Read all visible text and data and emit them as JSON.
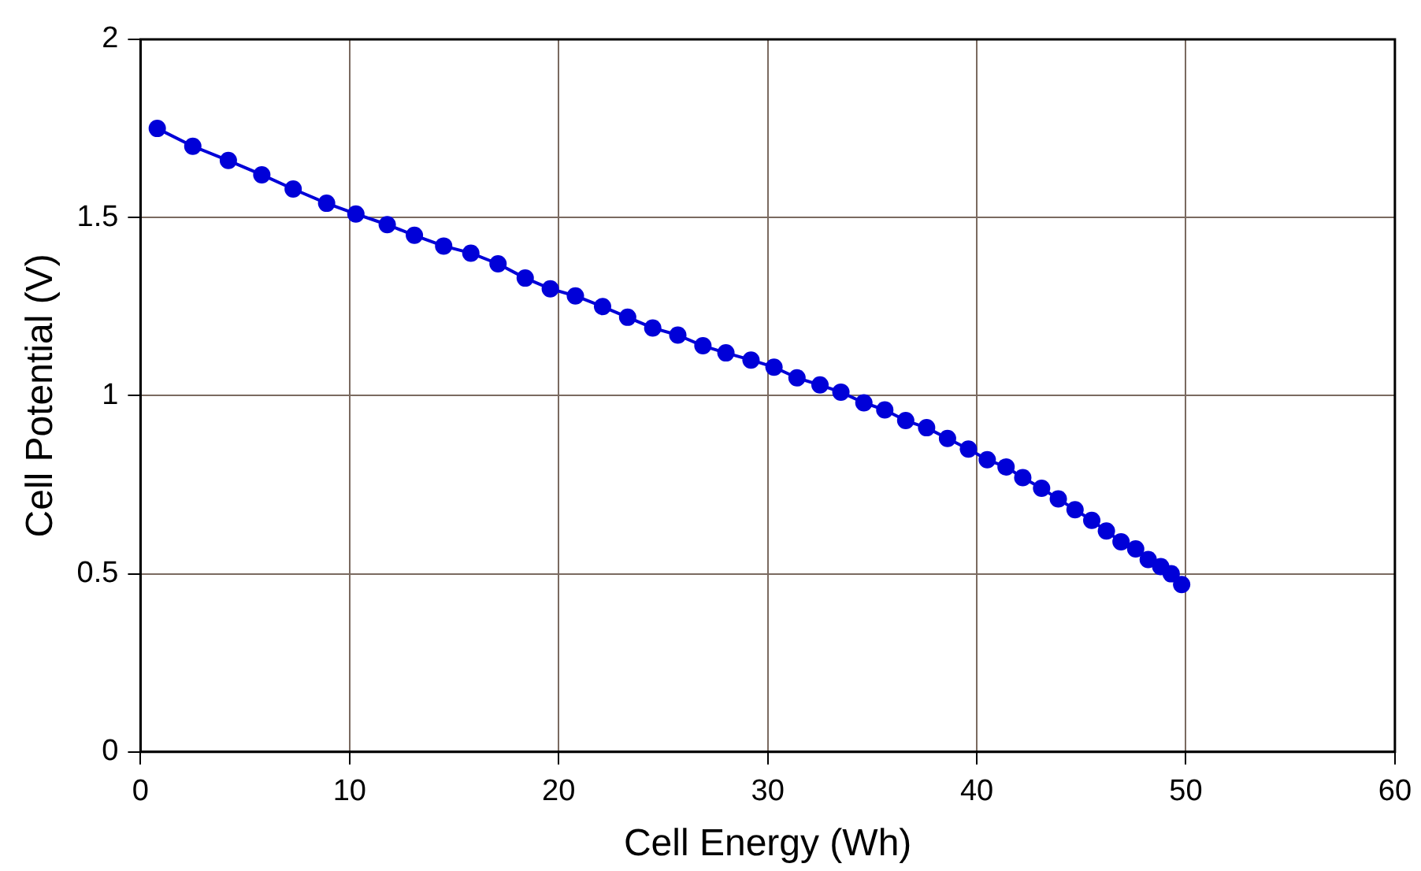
{
  "chart_data": {
    "type": "line",
    "xlabel": "Cell Energy (Wh)",
    "ylabel": "Cell Potential (V)",
    "xlim": [
      0,
      60
    ],
    "xticks": [
      0,
      10,
      20,
      30,
      40,
      50,
      60
    ],
    "ylim": [
      0,
      2
    ],
    "yticks": [
      0,
      0.5,
      1,
      1.5,
      2
    ],
    "grid": true,
    "legend": false,
    "marker": "circle",
    "line_style": "solid",
    "series": [
      {
        "color": "#0000d8",
        "x": [
          0.8,
          2.5,
          4.2,
          5.8,
          7.3,
          8.9,
          10.3,
          11.8,
          13.1,
          14.5,
          15.8,
          17.1,
          18.4,
          19.6,
          20.8,
          22.1,
          23.3,
          24.5,
          25.7,
          26.9,
          28.0,
          29.2,
          30.3,
          31.4,
          32.5,
          33.5,
          34.6,
          35.6,
          36.6,
          37.6,
          38.6,
          39.6,
          40.5,
          41.4,
          42.2,
          43.1,
          43.9,
          44.7,
          45.5,
          46.2,
          46.9,
          47.6,
          48.2,
          48.8,
          49.3,
          49.8
        ],
        "values": [
          1.75,
          1.7,
          1.66,
          1.62,
          1.58,
          1.54,
          1.51,
          1.48,
          1.45,
          1.42,
          1.4,
          1.37,
          1.33,
          1.3,
          1.28,
          1.25,
          1.22,
          1.19,
          1.17,
          1.14,
          1.12,
          1.1,
          1.08,
          1.05,
          1.03,
          1.01,
          0.98,
          0.96,
          0.93,
          0.91,
          0.88,
          0.85,
          0.82,
          0.8,
          0.77,
          0.74,
          0.71,
          0.68,
          0.65,
          0.62,
          0.59,
          0.57,
          0.54,
          0.52,
          0.5,
          0.47
        ]
      }
    ]
  }
}
